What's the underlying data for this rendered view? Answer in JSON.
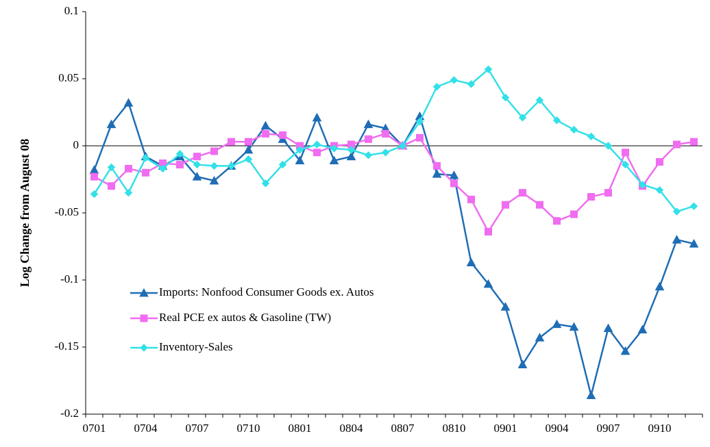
{
  "chart_data": {
    "type": "line",
    "y_label": "Log Change from August 08",
    "categories": [
      "0701",
      null,
      null,
      "0704",
      null,
      null,
      "0707",
      null,
      null,
      "0710",
      null,
      null,
      "0801",
      null,
      null,
      "0804",
      null,
      null,
      "0807",
      null,
      null,
      "0810",
      null,
      null,
      "0901",
      null,
      null,
      "0904",
      null,
      null,
      "0907",
      null,
      null,
      "0910",
      null,
      null
    ],
    "series": [
      {
        "name": "Imports: Nonfood Consumer Goods ex. Autos",
        "color": "#1f6db5",
        "marker": "triangle",
        "values": [
          -0.018,
          0.016,
          0.032,
          -0.008,
          -0.015,
          -0.008,
          -0.023,
          -0.026,
          -0.015,
          -0.003,
          0.015,
          0.005,
          -0.011,
          0.021,
          -0.011,
          -0.008,
          0.016,
          0.013,
          0.0,
          0.022,
          -0.021,
          -0.022,
          -0.087,
          -0.103,
          -0.12,
          -0.163,
          -0.143,
          -0.133,
          -0.135,
          -0.186,
          -0.136,
          -0.153,
          -0.137,
          -0.105,
          -0.07,
          -0.073
        ]
      },
      {
        "name": "Real PCE ex autos & Gasoline (TW)",
        "color": "#f06cf0",
        "marker": "square",
        "values": [
          -0.023,
          -0.03,
          -0.017,
          -0.02,
          -0.013,
          -0.014,
          -0.008,
          -0.004,
          0.003,
          0.003,
          0.009,
          0.008,
          0.0,
          -0.005,
          0.0,
          0.001,
          0.005,
          0.009,
          0.0,
          0.006,
          -0.015,
          -0.028,
          -0.04,
          -0.064,
          -0.044,
          -0.035,
          -0.044,
          -0.056,
          -0.051,
          -0.038,
          -0.035,
          -0.005,
          -0.03,
          -0.012,
          0.001,
          0.003
        ]
      },
      {
        "name": "Inventory-Sales",
        "color": "#33e0e8",
        "marker": "diamond",
        "values": [
          -0.036,
          -0.016,
          -0.035,
          -0.009,
          -0.017,
          -0.006,
          -0.014,
          -0.015,
          -0.015,
          -0.01,
          -0.028,
          -0.014,
          -0.003,
          0.001,
          -0.002,
          -0.003,
          -0.007,
          -0.005,
          0.0,
          0.018,
          0.044,
          0.049,
          0.046,
          0.057,
          0.036,
          0.021,
          0.034,
          0.019,
          0.012,
          0.007,
          0.0,
          -0.014,
          -0.029,
          -0.033,
          -0.049,
          -0.045
        ]
      }
    ],
    "ylim": [
      -0.2,
      0.1
    ],
    "yticks": [
      0.1,
      0.05,
      0,
      -0.05,
      -0.1,
      -0.15,
      -0.2
    ],
    "grid": false
  }
}
